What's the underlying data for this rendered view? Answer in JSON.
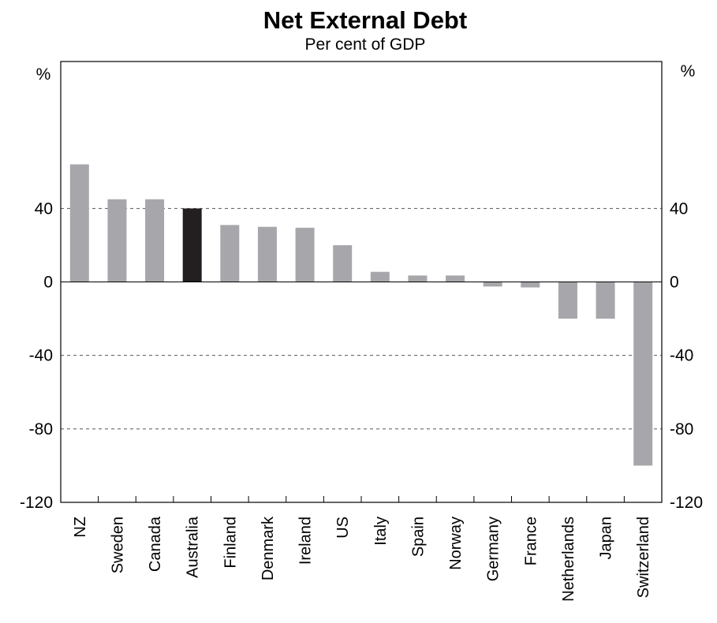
{
  "colors": {
    "bar_default": "#a7a7ab",
    "bar_highlight": "#231f20",
    "axis": "#000000",
    "gridline": "#555555"
  },
  "chart_data": {
    "type": "bar",
    "title": "Net External Debt",
    "subtitle": "Per cent of GDP",
    "unit_left": "%",
    "unit_right": "%",
    "xlabel": "",
    "ylabel": "",
    "ylim": [
      -120,
      120
    ],
    "yticks": [
      -120,
      -80,
      -40,
      0,
      40
    ],
    "ytick_labels": [
      "-120",
      "-80",
      "-40",
      "0",
      "40"
    ],
    "grid": "dashed horizontal at 40, 0, -40, -80",
    "legend": "none",
    "categories": [
      "NZ",
      "Sweden",
      "Canada",
      "Australia",
      "Finland",
      "Denmark",
      "Ireland",
      "US",
      "Italy",
      "Spain",
      "Norway",
      "Germany",
      "France",
      "Netherlands",
      "Japan",
      "Switzerland"
    ],
    "values": [
      64,
      45,
      45,
      40,
      31,
      30,
      29.5,
      20,
      5.5,
      3.5,
      3.5,
      -2.5,
      -3,
      -20,
      -20,
      -100
    ],
    "highlight": "Australia"
  }
}
